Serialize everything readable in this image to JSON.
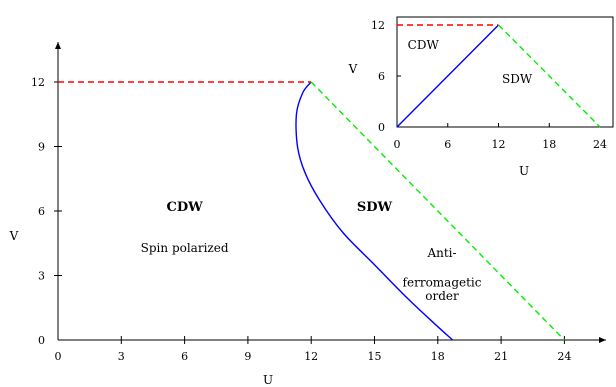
{
  "chart_data": [
    {
      "type": "line",
      "title": "",
      "xlabel": "U",
      "ylabel": "V",
      "xlim": [
        0,
        26
      ],
      "ylim": [
        0,
        14
      ],
      "xticks": [
        0,
        3,
        6,
        9,
        12,
        15,
        18,
        21,
        24
      ],
      "yticks": [
        0,
        3,
        6,
        9,
        12
      ],
      "series": [
        {
          "style": "solid",
          "color": "#0000ff",
          "x": [
            12,
            11.6,
            11.3,
            11.35,
            11.7,
            12.4,
            13.5,
            15.0,
            16.5,
            17.8,
            18.7
          ],
          "y": [
            12,
            11.5,
            10.5,
            9.0,
            7.8,
            6.5,
            5.0,
            3.5,
            2.0,
            0.8,
            0
          ]
        },
        {
          "style": "dashed",
          "color": "#ff0000",
          "x": [
            0,
            12
          ],
          "y": [
            12,
            12
          ]
        },
        {
          "style": "dashed",
          "color": "#00ee00",
          "x": [
            12,
            24
          ],
          "y": [
            12,
            0
          ]
        }
      ],
      "annotations": [
        {
          "text": "CDW",
          "x": 6,
          "y": 6,
          "bold": true
        },
        {
          "text": "Spin polarized",
          "x": 6,
          "y": 4.1
        },
        {
          "text": "SDW",
          "x": 15,
          "y": 6,
          "bold": true
        },
        {
          "text": "Anti-",
          "x": 18.2,
          "y": 3.85
        },
        {
          "text": "ferromagetic",
          "x": 18.2,
          "y": 2.5
        },
        {
          "text": "order",
          "x": 18.2,
          "y": 1.85
        }
      ]
    },
    {
      "type": "line",
      "title": "",
      "xlabel": "U",
      "ylabel": "V",
      "xlim": [
        0,
        24
      ],
      "ylim": [
        0,
        12
      ],
      "xticks": [
        0,
        6,
        12,
        18,
        24
      ],
      "yticks": [
        0,
        6,
        12
      ],
      "series": [
        {
          "style": "solid",
          "color": "#0000ff",
          "x": [
            0,
            12
          ],
          "y": [
            0,
            12
          ]
        },
        {
          "style": "dashed",
          "color": "#ff0000",
          "x": [
            0,
            12
          ],
          "y": [
            12,
            12
          ]
        },
        {
          "style": "dashed",
          "color": "#00ee00",
          "x": [
            12,
            24
          ],
          "y": [
            12,
            0
          ]
        }
      ],
      "annotations": [
        {
          "text": "CDW",
          "x": 3.1,
          "y": 9.2
        },
        {
          "text": "SDW",
          "x": 14.2,
          "y": 5.2
        }
      ]
    }
  ]
}
